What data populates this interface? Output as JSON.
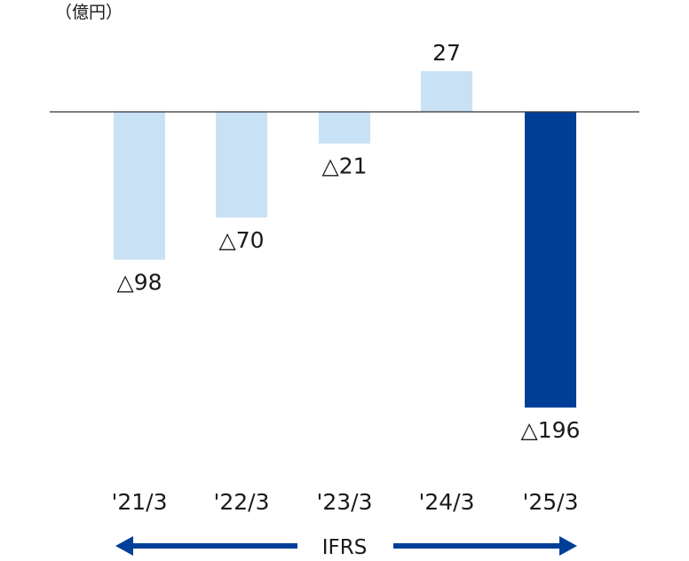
{
  "chart_data": {
    "type": "bar",
    "unit_label": "（億円）",
    "categories": [
      "'21/3",
      "'22/3",
      "'23/3",
      "'24/3",
      "'25/3"
    ],
    "values": [
      -98,
      -70,
      -21,
      27,
      -196
    ],
    "value_labels": [
      "△98",
      "△70",
      "△21",
      "27",
      "△196"
    ],
    "bar_colors": [
      "#c9e1f5",
      "#c9e1f5",
      "#c9e1f5",
      "#c9e1f5",
      "#003f98"
    ],
    "ylim": [
      -196,
      27
    ],
    "grid": false,
    "standard_label": "IFRS",
    "arrow_color": "#003f98",
    "axis_color": "#333333"
  }
}
